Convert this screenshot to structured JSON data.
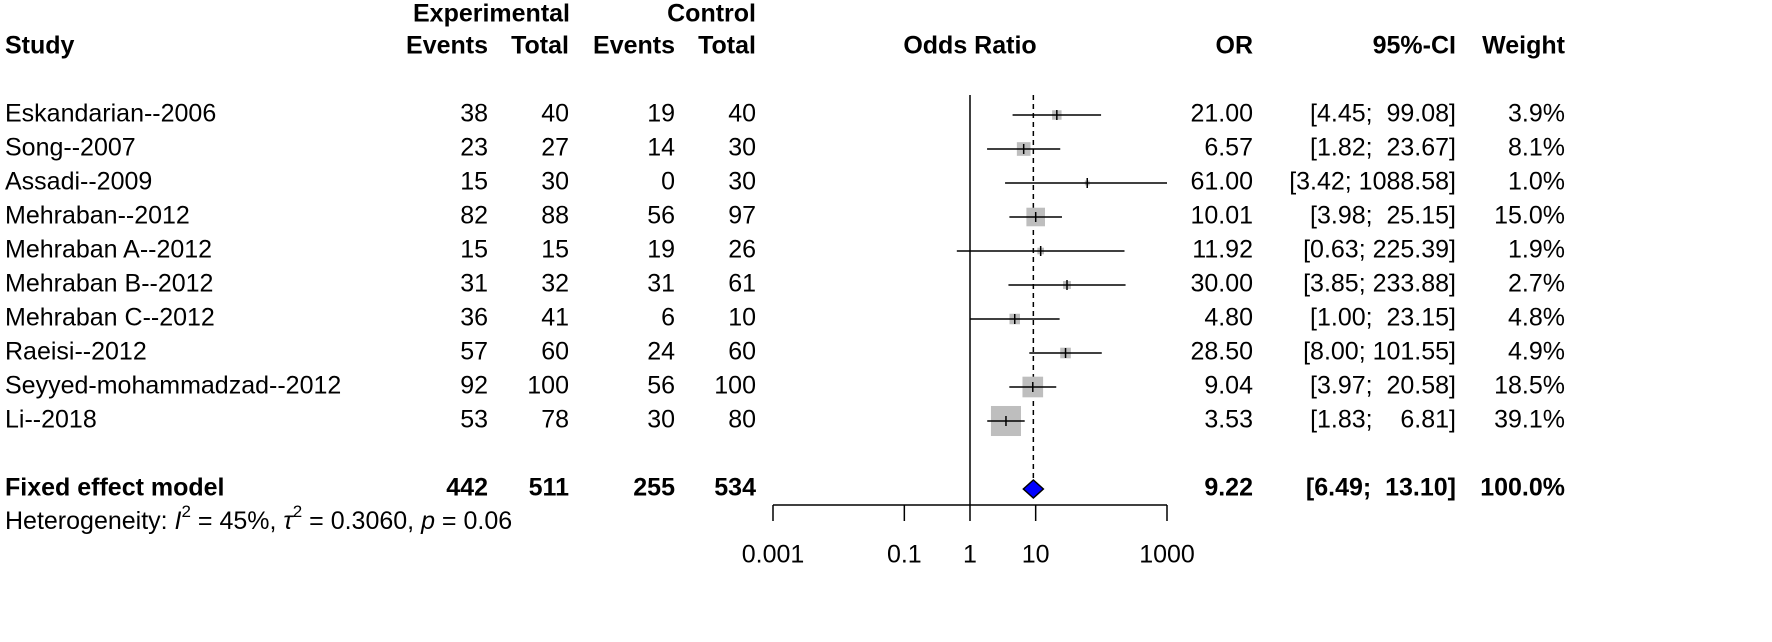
{
  "chart_data": {
    "type": "forest",
    "title": "Odds Ratio",
    "headers": {
      "study": "Study",
      "experimental": "Experimental",
      "control": "Control",
      "events_exp": "Events",
      "total_exp": "Total",
      "events_ctrl": "Events",
      "total_ctrl": "Total",
      "or": "OR",
      "ci": "95%-CI",
      "weight": "Weight"
    },
    "studies": [
      "Eskandarian--2006",
      "Song--2007",
      "Assadi--2009",
      "Mehraban--2012",
      "Mehraban A--2012",
      "Mehraban B--2012",
      "Mehraban C--2012",
      "Raeisi--2012",
      "Seyyed-mohammadzad--2012",
      "Li--2018"
    ],
    "exp_events": [
      38,
      23,
      15,
      82,
      15,
      31,
      36,
      57,
      92,
      53
    ],
    "exp_total": [
      40,
      27,
      30,
      88,
      15,
      32,
      41,
      60,
      100,
      78
    ],
    "ctrl_events": [
      19,
      14,
      0,
      56,
      19,
      31,
      6,
      24,
      56,
      30
    ],
    "ctrl_total": [
      40,
      30,
      30,
      97,
      26,
      61,
      10,
      60,
      100,
      80
    ],
    "values": [
      21.0,
      6.57,
      61.0,
      10.01,
      11.92,
      30.0,
      4.8,
      28.5,
      9.04,
      3.53
    ],
    "value_labels": [
      "21.00",
      "6.57",
      "61.00",
      "10.01",
      "11.92",
      "30.00",
      "4.80",
      "28.50",
      "9.04",
      "3.53"
    ],
    "ci_low": [
      4.45,
      1.82,
      3.42,
      3.98,
      0.63,
      3.85,
      1.0,
      8.0,
      3.97,
      1.83
    ],
    "ci_high": [
      99.08,
      23.67,
      1088.58,
      25.15,
      225.39,
      233.88,
      23.15,
      101.55,
      20.58,
      6.81
    ],
    "ci_labels": [
      "[4.45;  99.08]",
      "[1.82;  23.67]",
      "[3.42; 1088.58]",
      "[3.98;  25.15]",
      "[0.63; 225.39]",
      "[3.85; 233.88]",
      "[1.00;  23.15]",
      "[8.00; 101.55]",
      "[3.97;  20.58]",
      "[1.83;    6.81]"
    ],
    "weights": [
      3.9,
      8.1,
      1.0,
      15.0,
      1.9,
      2.7,
      4.8,
      4.9,
      18.5,
      39.1
    ],
    "weight_labels": [
      "3.9%",
      "8.1%",
      "1.0%",
      "15.0%",
      "1.9%",
      "2.7%",
      "4.8%",
      "4.9%",
      "18.5%",
      "39.1%"
    ],
    "pooled": {
      "name": "Fixed effect model",
      "exp_events": 442,
      "exp_total": 511,
      "ctrl_events": 255,
      "ctrl_total": 534,
      "value": 9.22,
      "value_label": "9.22",
      "ci_low": 6.49,
      "ci_high": 13.1,
      "ci_label": "[6.49;  13.10]",
      "weight": 100,
      "weight_label": "100.0%",
      "color": "#0000ff"
    },
    "heterogeneity": [
      "Heterogeneity: ",
      "I",
      "2",
      " = 45%, ",
      "τ",
      "2",
      " = 0.3060, ",
      "p",
      " = 0.06"
    ],
    "xscale": "log",
    "xlim": [
      0.001,
      1000
    ],
    "xticks": [
      0.001,
      0.1,
      1,
      10,
      1000
    ],
    "reference": 1,
    "square_color": "#bebebe"
  }
}
